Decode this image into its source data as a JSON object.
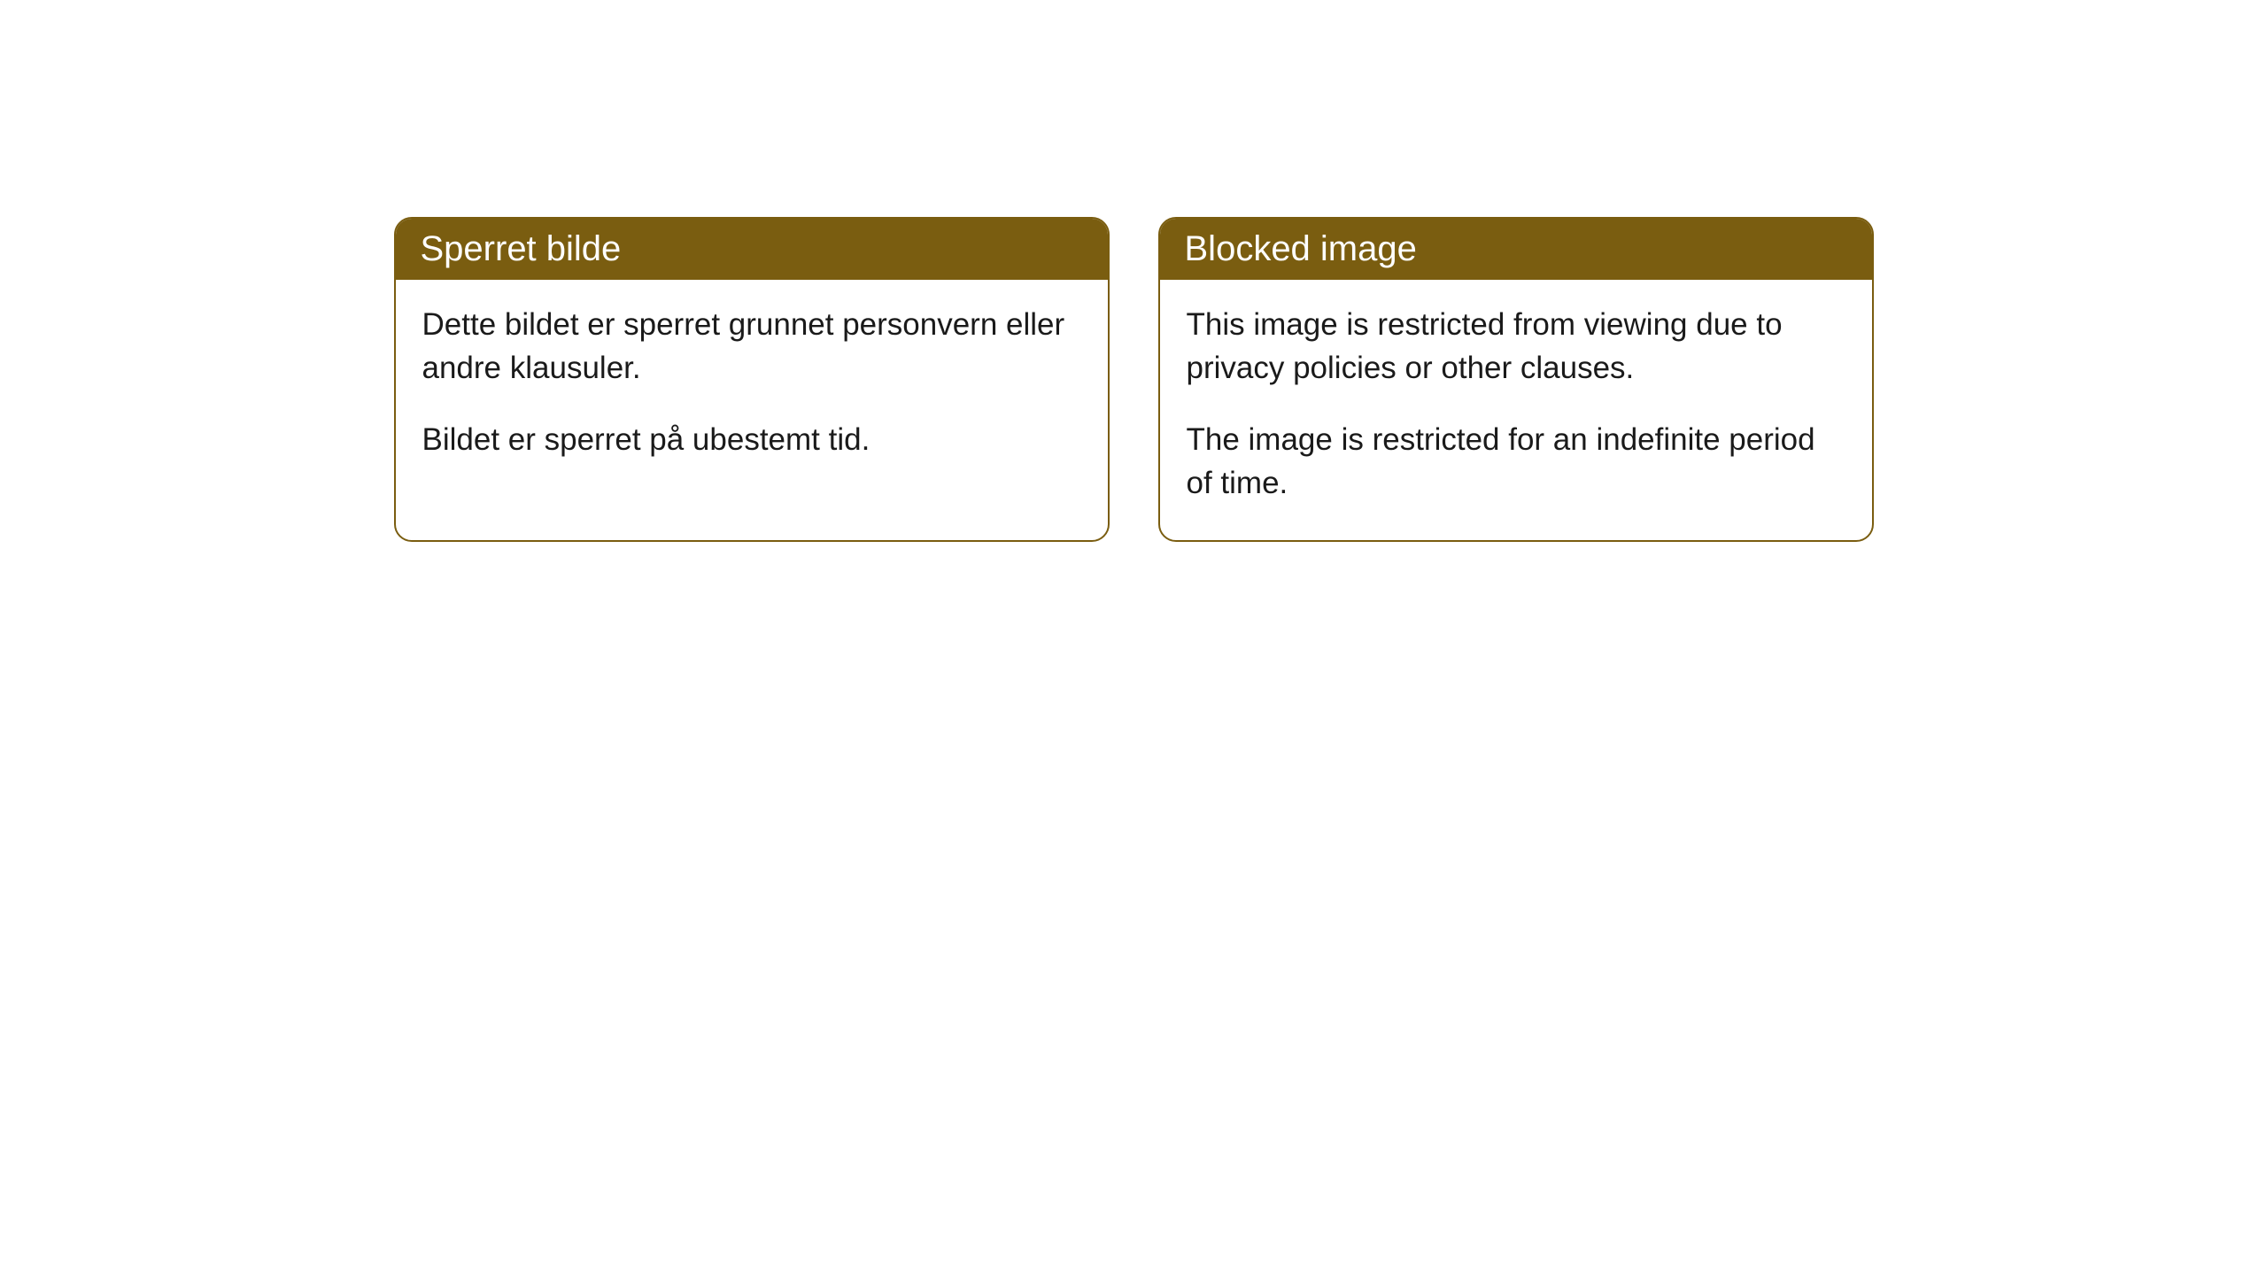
{
  "cards": [
    {
      "title": "Sperret bilde",
      "paragraph1": "Dette bildet er sperret grunnet personvern eller andre klausuler.",
      "paragraph2": "Bildet er sperret på ubestemt tid."
    },
    {
      "title": "Blocked image",
      "paragraph1": "This image is restricted from viewing due to privacy policies or other clauses.",
      "paragraph2": "The image is restricted for an indefinite period of time."
    }
  ],
  "styling": {
    "header_background": "#7a5d10",
    "header_text_color": "#ffffff",
    "border_color": "#7a5d10",
    "body_background": "#ffffff",
    "body_text_color": "#1a1a1a",
    "border_radius": 20,
    "header_fontsize": 40,
    "body_fontsize": 35
  }
}
